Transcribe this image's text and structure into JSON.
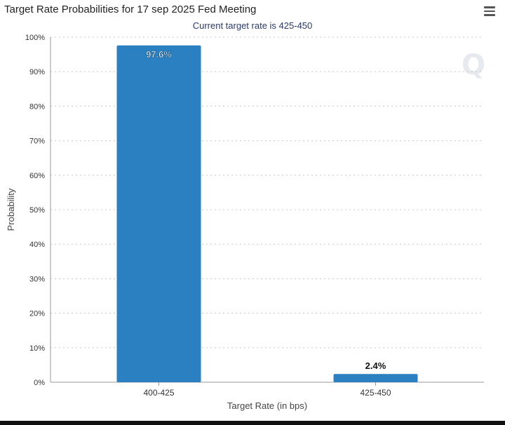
{
  "chart_data": {
    "type": "bar",
    "title": "Target Rate Probabilities for 17 sep 2025 Fed Meeting",
    "subtitle": "Current target rate is 425-450",
    "xlabel": "Target Rate (in bps)",
    "ylabel": "Probability",
    "categories": [
      "400-425",
      "425-450"
    ],
    "values": [
      97.6,
      2.4
    ],
    "data_labels": [
      "97.6%",
      "2.4%"
    ],
    "ylim": [
      0,
      100
    ],
    "yticks": [
      0,
      10,
      20,
      30,
      40,
      50,
      60,
      70,
      80,
      90,
      100
    ],
    "ytick_labels": [
      "0%",
      "10%",
      "20%",
      "30%",
      "40%",
      "50%",
      "60%",
      "70%",
      "80%",
      "90%",
      "100%"
    ],
    "grid": true,
    "legend": "none",
    "bar_color": "#2a80c0",
    "watermark_text": "Q"
  }
}
